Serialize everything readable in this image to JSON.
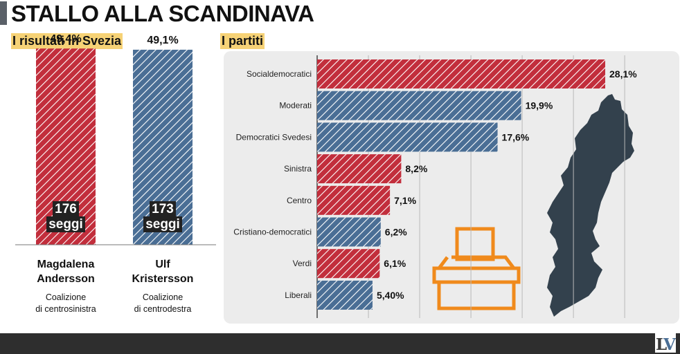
{
  "title": "STALLO ALLA SCANDINAVA",
  "left_section": "I risultati in Svezia",
  "right_section": "I partiti",
  "colors": {
    "red": "#c22e3c",
    "blue": "#4a6e95",
    "map": "#33414d",
    "ballot": "#f08a1c",
    "label_bg": "#f6d276"
  },
  "chart_data": [
    {
      "type": "bar",
      "categories": [
        "Magdalena Andersson",
        "Ulf Kristersson"
      ],
      "values": [
        49.4,
        49.1
      ],
      "value_labels": [
        "49,4%",
        "49,1%"
      ],
      "ylim": [
        0,
        55
      ],
      "coalitions": [
        {
          "leader_line1": "Magdalena",
          "leader_line2": "Andersson",
          "seats": "176",
          "seats_unit": "seggi",
          "coalition_line1": "Coalizione",
          "coalition_line2": "di centrosinistra",
          "color": "#c22e3c"
        },
        {
          "leader_line1": "Ulf",
          "leader_line2": "Kristersson",
          "seats": "173",
          "seats_unit": "seggi",
          "coalition_line1": "Coalizione",
          "coalition_line2": "di centrodestra",
          "color": "#4a6e95"
        }
      ]
    },
    {
      "type": "bar",
      "orientation": "horizontal",
      "categories": [
        "Socialdemocratici",
        "Moderati",
        "Democratici Svedesi",
        "Sinistra",
        "Centro",
        "Cristiano-democratici",
        "Verdi",
        "Liberali"
      ],
      "values": [
        28.1,
        19.9,
        17.6,
        8.2,
        7.1,
        6.2,
        6.1,
        5.4
      ],
      "value_labels": [
        "28,1%",
        "19,9%",
        "17,6%",
        "8,2%",
        "7,1%",
        "6,2%",
        "6,1%",
        "5,40%"
      ],
      "colors": [
        "#c22e3c",
        "#4a6e95",
        "#4a6e95",
        "#c22e3c",
        "#c22e3c",
        "#4a6e95",
        "#c22e3c",
        "#4a6e95"
      ],
      "xlim": [
        0,
        30
      ],
      "grid": true
    }
  ]
}
